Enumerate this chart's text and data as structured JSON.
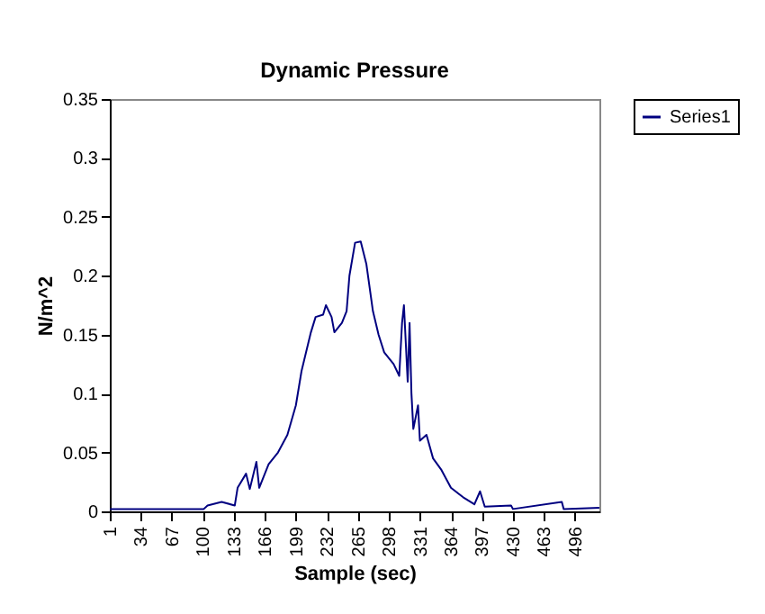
{
  "chart_data": {
    "type": "line",
    "title": "Dynamic Pressure",
    "xlabel": "Sample (sec)",
    "ylabel": "N/m^2",
    "xlim": [
      1,
      522
    ],
    "xticks": [
      1,
      34,
      67,
      100,
      133,
      166,
      199,
      232,
      265,
      298,
      331,
      364,
      397,
      430,
      463,
      496
    ],
    "ylim": [
      0,
      0.35
    ],
    "yticks": [
      0,
      0.05,
      0.1,
      0.15,
      0.2,
      0.25,
      0.3,
      0.35
    ],
    "legend": "right",
    "x": [
      1,
      50,
      101,
      105,
      120,
      134,
      137,
      146,
      150,
      157,
      160,
      170,
      180,
      190,
      199,
      205,
      208,
      215,
      220,
      228,
      231,
      237,
      240,
      248,
      253,
      256,
      262,
      268,
      274,
      281,
      287,
      293,
      303,
      309,
      312,
      314,
      318,
      320,
      322,
      324,
      329,
      331,
      338,
      345,
      354,
      364,
      377,
      389,
      395,
      400,
      428,
      430,
      482,
      484,
      522
    ],
    "series": [
      {
        "name": "Series1",
        "color": "#000080",
        "values": [
          0.002,
          0.002,
          0.002,
          0.005,
          0.008,
          0.005,
          0.02,
          0.032,
          0.019,
          0.042,
          0.02,
          0.04,
          0.05,
          0.065,
          0.09,
          0.119,
          0.129,
          0.152,
          0.165,
          0.167,
          0.175,
          0.165,
          0.152,
          0.16,
          0.17,
          0.2,
          0.228,
          0.229,
          0.21,
          0.17,
          0.15,
          0.135,
          0.125,
          0.115,
          0.16,
          0.175,
          0.11,
          0.16,
          0.1,
          0.07,
          0.09,
          0.06,
          0.065,
          0.045,
          0.035,
          0.02,
          0.012,
          0.006,
          0.017,
          0.004,
          0.005,
          0.002,
          0.008,
          0.002,
          0.003
        ]
      }
    ]
  }
}
